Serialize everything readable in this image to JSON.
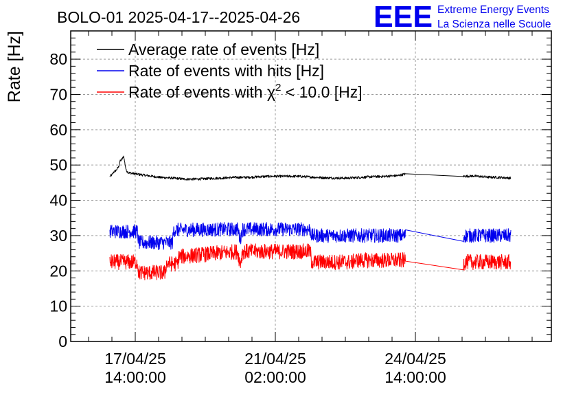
{
  "chart_data": {
    "type": "line",
    "title": "BOLO-01 2025-04-17--2025-04-26",
    "ylabel": "Rate [Hz]",
    "xlabel": "",
    "ylim": [
      0,
      88
    ],
    "y_ticks": [
      0,
      10,
      20,
      30,
      40,
      50,
      60,
      70,
      80
    ],
    "x_ticks": [
      {
        "date": "17/04/25",
        "time": "14:00:00"
      },
      {
        "date": "21/04/25",
        "time": "02:00:00"
      },
      {
        "date": "24/04/25",
        "time": "14:00:00"
      }
    ],
    "grid": true,
    "legend_position": "top-left",
    "logo": {
      "mark": "EEE",
      "line1": "Extreme Energy Events",
      "line2": "La Scienza nelle Scuole",
      "color": "#0000ee"
    },
    "series": [
      {
        "name": "Average rate of events [Hz]",
        "legend_main": "Average rate of events [Hz]",
        "color": "#000000",
        "noise": 0.35,
        "x": [
          0,
          0.1,
          0.15,
          0.25,
          0.35,
          0.4,
          0.5,
          0.55,
          0.65,
          0.75,
          1.0,
          1.5,
          2.0,
          2.5,
          3.0,
          3.5,
          4.0,
          4.5,
          5.0,
          5.5,
          6.0,
          6.5,
          7.0,
          7.5,
          8.0,
          8.5,
          9.0,
          9.5,
          10.0,
          10.5,
          11.0,
          11.5,
          11.75,
          12.0,
          14.0,
          14.05,
          14.5,
          15.0,
          15.5,
          16.0
        ],
        "y": [
          46.8,
          47.3,
          48.0,
          48.5,
          49.5,
          51.0,
          51.8,
          52.5,
          48.5,
          47.8,
          47.5,
          47.0,
          46.5,
          46.3,
          46.0,
          46.0,
          46.2,
          46.3,
          46.5,
          46.5,
          46.7,
          46.8,
          46.8,
          46.8,
          46.6,
          46.4,
          46.3,
          46.3,
          46.5,
          46.7,
          46.8,
          47.0,
          47.4,
          47.3,
          46.7,
          46.8,
          46.9,
          46.6,
          46.5,
          46.3
        ]
      },
      {
        "name": "Rate of events with hits [Hz]",
        "legend_main": "Rate of events with hits [Hz]",
        "color": "#0000ee",
        "noise": 2.0,
        "x": [
          0,
          1.1,
          1.15,
          2.5,
          2.55,
          5.1,
          5.2,
          5.3,
          8.0,
          8.05,
          9.7,
          9.75,
          11.8,
          14.1,
          14.15,
          16.0
        ],
        "y": [
          31.2,
          31.2,
          28.0,
          28.0,
          31.6,
          31.8,
          29.0,
          31.8,
          31.8,
          30.0,
          30.0,
          30.0,
          30.0,
          29.0,
          30.0,
          30.0
        ]
      },
      {
        "name": "Rate of events with χ2 < 10.0 [Hz]",
        "legend_main": "Rate of events with χ",
        "legend_sup": "2",
        "legend_rest": " < 10.0 [Hz]",
        "color": "#ff0000",
        "noise": 2.2,
        "x": [
          0,
          1.1,
          1.15,
          2.2,
          2.25,
          2.7,
          2.75,
          5.1,
          5.2,
          5.3,
          8.0,
          8.05,
          9.7,
          9.75,
          11.8,
          14.1,
          14.15,
          16.0
        ],
        "y": [
          22.5,
          22.5,
          19.5,
          19.5,
          22.0,
          22.0,
          24.0,
          25.5,
          22.0,
          25.5,
          25.5,
          22.5,
          22.5,
          23.0,
          23.0,
          22.0,
          22.5,
          22.5
        ]
      }
    ],
    "gaps": [
      [
        11.8,
        14.1
      ]
    ]
  }
}
